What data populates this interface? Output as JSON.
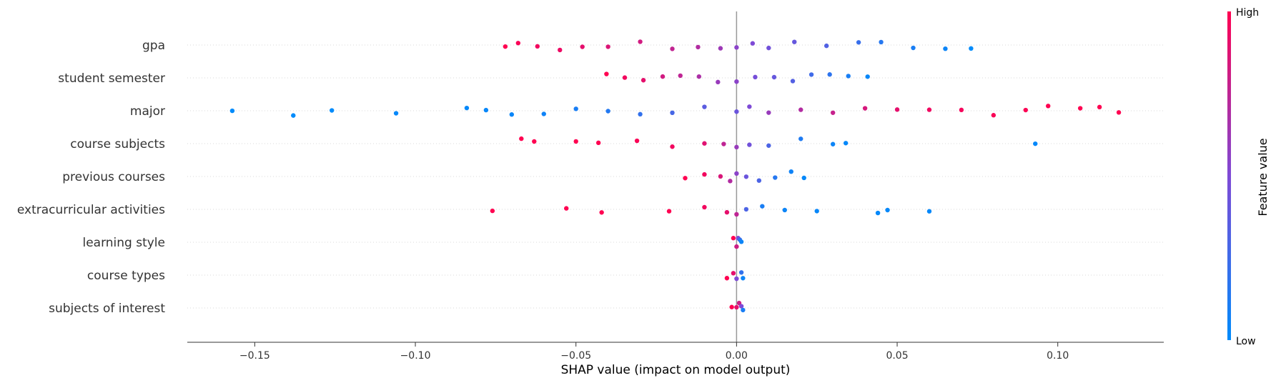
{
  "chart_data": {
    "type": "scatter",
    "subtype": "shap-beeswarm",
    "title": "",
    "xlabel": "SHAP value (impact on model output)",
    "xlim": [
      -0.171,
      0.133
    ],
    "xticks": [
      -0.15,
      -0.1,
      -0.05,
      0.0,
      0.05,
      0.1
    ],
    "xtick_labels": [
      "−0.15",
      "−0.10",
      "−0.05",
      "0.00",
      "0.05",
      "0.10"
    ],
    "grid": false,
    "zero_line": true,
    "colorbar": {
      "title": "Feature value",
      "high_label": "High",
      "low_label": "Low",
      "low_color": "#008bfb",
      "mid_color": "#7e4ad6",
      "high_color": "#ff0051"
    },
    "features": [
      {
        "name": "gpa",
        "points": [
          [
            -0.072,
            1.0
          ],
          [
            -0.068,
            0.98
          ],
          [
            -0.062,
            0.95
          ],
          [
            -0.055,
            0.93
          ],
          [
            -0.048,
            0.9
          ],
          [
            -0.04,
            0.86
          ],
          [
            -0.03,
            0.82
          ],
          [
            -0.02,
            0.76
          ],
          [
            -0.012,
            0.7
          ],
          [
            -0.005,
            0.62
          ],
          [
            0.0,
            0.55
          ],
          [
            0.005,
            0.5
          ],
          [
            0.01,
            0.45
          ],
          [
            0.018,
            0.4
          ],
          [
            0.028,
            0.32
          ],
          [
            0.038,
            0.22
          ],
          [
            0.045,
            0.15
          ],
          [
            0.055,
            0.1
          ],
          [
            0.065,
            0.05
          ],
          [
            0.073,
            0.0
          ]
        ]
      },
      {
        "name": "student semester",
        "points": [
          [
            -0.0405,
            1.0
          ],
          [
            -0.0348,
            0.95
          ],
          [
            -0.029,
            0.9
          ],
          [
            -0.023,
            0.82
          ],
          [
            -0.0175,
            0.75
          ],
          [
            -0.0117,
            0.68
          ],
          [
            -0.0058,
            0.6
          ],
          [
            0.0,
            0.55
          ],
          [
            0.0058,
            0.47
          ],
          [
            0.0117,
            0.4
          ],
          [
            0.0175,
            0.33
          ],
          [
            0.0233,
            0.25
          ],
          [
            0.029,
            0.18
          ],
          [
            0.0348,
            0.1
          ],
          [
            0.0408,
            0.03
          ]
        ]
      },
      {
        "name": "major",
        "points": [
          [
            -0.157,
            0.0
          ],
          [
            -0.138,
            0.0
          ],
          [
            -0.126,
            0.0
          ],
          [
            -0.106,
            0.02
          ],
          [
            -0.084,
            0.02
          ],
          [
            -0.078,
            0.03
          ],
          [
            -0.07,
            0.04
          ],
          [
            -0.06,
            0.06
          ],
          [
            -0.05,
            0.1
          ],
          [
            -0.04,
            0.14
          ],
          [
            -0.03,
            0.2
          ],
          [
            -0.02,
            0.28
          ],
          [
            -0.01,
            0.36
          ],
          [
            0.0,
            0.42
          ],
          [
            0.004,
            0.5
          ],
          [
            0.01,
            0.6
          ],
          [
            0.02,
            0.7
          ],
          [
            0.03,
            0.78
          ],
          [
            0.04,
            0.84
          ],
          [
            0.05,
            0.9
          ],
          [
            0.06,
            0.94
          ],
          [
            0.07,
            0.96
          ],
          [
            0.08,
            0.98
          ],
          [
            0.09,
            0.99
          ],
          [
            0.097,
            1.0
          ],
          [
            0.107,
            1.0
          ],
          [
            0.113,
            1.0
          ],
          [
            0.119,
            1.0
          ]
        ]
      },
      {
        "name": "course subjects",
        "points": [
          [
            -0.067,
            1.0
          ],
          [
            -0.063,
            1.0
          ],
          [
            -0.05,
            1.0
          ],
          [
            -0.043,
            1.0
          ],
          [
            -0.031,
            0.98
          ],
          [
            -0.02,
            0.95
          ],
          [
            -0.01,
            0.88
          ],
          [
            -0.004,
            0.75
          ],
          [
            0.0,
            0.6
          ],
          [
            0.004,
            0.45
          ],
          [
            0.01,
            0.3
          ],
          [
            0.02,
            0.12
          ],
          [
            0.03,
            0.05
          ],
          [
            0.034,
            0.02
          ],
          [
            0.093,
            0.02
          ]
        ]
      },
      {
        "name": "previous courses",
        "points": [
          [
            -0.016,
            1.0
          ],
          [
            -0.01,
            0.95
          ],
          [
            -0.005,
            0.85
          ],
          [
            -0.002,
            0.7
          ],
          [
            0.0,
            0.55
          ],
          [
            0.003,
            0.42
          ],
          [
            0.007,
            0.3
          ],
          [
            0.012,
            0.15
          ],
          [
            0.017,
            0.06
          ],
          [
            0.021,
            0.02
          ]
        ]
      },
      {
        "name": "extracurricular activities",
        "points": [
          [
            -0.076,
            1.0
          ],
          [
            -0.053,
            1.0
          ],
          [
            -0.042,
            1.0
          ],
          [
            -0.021,
            1.0
          ],
          [
            -0.01,
            0.95
          ],
          [
            -0.003,
            0.9
          ],
          [
            0.0,
            0.75
          ],
          [
            0.003,
            0.3
          ],
          [
            0.008,
            0.1
          ],
          [
            0.015,
            0.05
          ],
          [
            0.025,
            0.03
          ],
          [
            0.044,
            0.02
          ],
          [
            0.047,
            0.02
          ],
          [
            0.06,
            0.02
          ]
        ]
      },
      {
        "name": "learning style",
        "points": [
          [
            -0.001,
            1.0
          ],
          [
            0.0,
            0.8
          ],
          [
            0.0005,
            0.5
          ],
          [
            0.001,
            0.2
          ],
          [
            0.0015,
            0.05
          ]
        ]
      },
      {
        "name": "course types",
        "points": [
          [
            -0.003,
            1.0
          ],
          [
            -0.001,
            0.9
          ],
          [
            0.0,
            0.5
          ],
          [
            0.0015,
            0.2
          ],
          [
            0.002,
            0.05
          ]
        ]
      },
      {
        "name": "subjects of interest",
        "points": [
          [
            -0.0015,
            1.0
          ],
          [
            0.0,
            0.9
          ],
          [
            0.0008,
            0.8
          ],
          [
            0.0015,
            0.5
          ],
          [
            0.002,
            0.1
          ]
        ]
      }
    ]
  }
}
